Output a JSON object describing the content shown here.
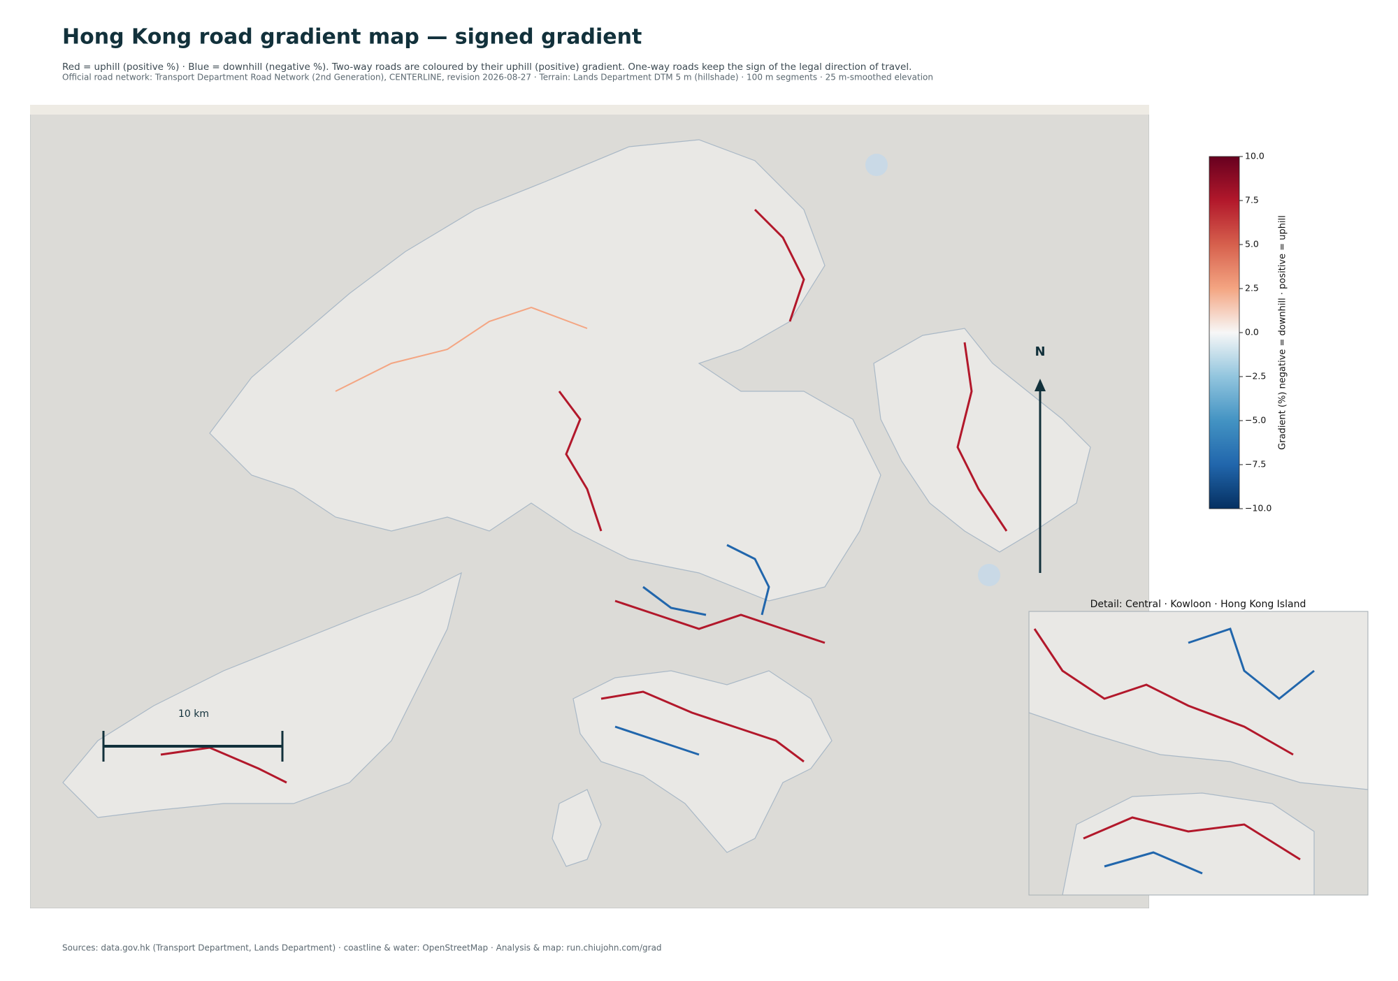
{
  "header": {
    "title": "Hong Kong road gradient map — signed gradient",
    "subtitle": "Red = uphill (positive %) · Blue = downhill (negative %). Two-way roads are coloured by their uphill (positive) gradient. One-way roads keep the sign of the legal direction of travel.",
    "source_note": "Official road network: Transport Department Road Network (2nd Generation), CENTERLINE, revision 2026-08-27 · Terrain: Lands Department DTM 5 m (hillshade) · 100 m segments · 25 m-smoothed elevation"
  },
  "colorbar": {
    "label": "Gradient (%)   negative = downhill · positive = uphill",
    "lim": [
      -10,
      10
    ],
    "ticks": [
      {
        "value": 10,
        "label": "10.0"
      },
      {
        "value": 7.5,
        "label": "7.5"
      },
      {
        "value": 5,
        "label": "5.0"
      },
      {
        "value": 2.5,
        "label": "2.5"
      },
      {
        "value": 0,
        "label": "0.0"
      },
      {
        "value": -2.5,
        "label": "−2.5"
      },
      {
        "value": -5,
        "label": "−5.0"
      },
      {
        "value": -7.5,
        "label": "−7.5"
      },
      {
        "value": -10,
        "label": "−10.0"
      }
    ]
  },
  "north_arrow": {
    "label": "N"
  },
  "scale_bar": {
    "label": "10 km"
  },
  "inset": {
    "title": "Detail: Central · Kowloon · Hong Kong Island"
  },
  "footer": {
    "text": "Sources: data.gov.hk (Transport Department, Lands Department) · coastline & water: OpenStreetMap · Analysis & map: run.chiujohn.com/grad"
  }
}
